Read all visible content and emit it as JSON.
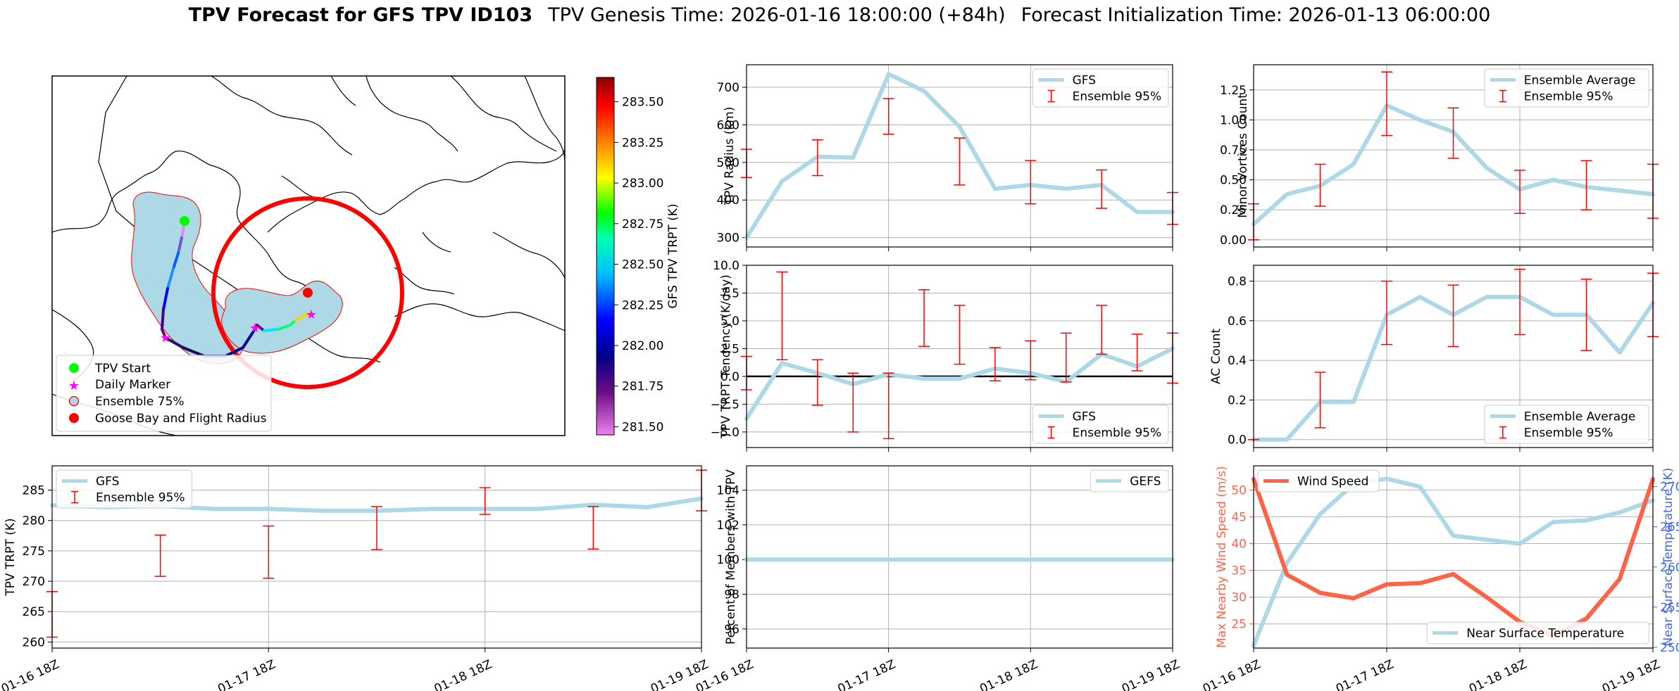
{
  "header": {
    "title_bold": "TPV Forecast for GFS TPV ID103",
    "genesis": "TPV Genesis Time: 2026-01-16 18:00:00 (+84h)",
    "init": "Forecast Initialization Time: 2026-01-13 06:00:00"
  },
  "colors": {
    "gfs_line": "#add8e6",
    "ensemble_err": "#ff0000",
    "wind": "#ff6347",
    "temp_axis": "#4169e1",
    "zero_line": "#000000"
  },
  "map": {
    "colorbar_label": "GFS TPV TRPT (K)",
    "colorbar_ticks": [
      "283.50",
      "283.25",
      "283.00",
      "282.75",
      "282.50",
      "282.25",
      "282.00",
      "281.75",
      "281.50"
    ],
    "legend": [
      "TPV Start",
      "Daily Marker",
      "Ensemble 75%",
      "Goose Bay and Flight Radius"
    ]
  },
  "x_tick_labels": [
    "01-16 18Z",
    "01-17 18Z",
    "01-18 18Z",
    "01-19 18Z"
  ],
  "chart_data": [
    {
      "id": "radius",
      "type": "line",
      "ylabel": "TPV Radius (km)",
      "ylim": [
        275,
        760
      ],
      "yticks": [
        300,
        400,
        500,
        600,
        700
      ],
      "x_hours": [
        0,
        6,
        12,
        18,
        24,
        30,
        36,
        42,
        48,
        54,
        60,
        66,
        72
      ],
      "series": [
        {
          "name": "GFS",
          "values": [
            300,
            450,
            515,
            513,
            735,
            690,
            595,
            430,
            440,
            430,
            440,
            368,
            368
          ]
        }
      ],
      "error_bars": {
        "name": "Ensemble 95%",
        "x_hours": [
          0,
          12,
          24,
          36,
          48,
          60,
          72
        ],
        "low": [
          460,
          465,
          575,
          440,
          390,
          378,
          335
        ],
        "high": [
          535,
          560,
          670,
          565,
          505,
          480,
          420
        ]
      },
      "legend": "top-right"
    },
    {
      "id": "minor",
      "type": "line",
      "ylabel": "Minor Vortices Count",
      "ylim": [
        -0.06,
        1.46
      ],
      "yticks": [
        0.0,
        0.25,
        0.5,
        0.75,
        1.0,
        1.25
      ],
      "yticklabels": [
        "0.00",
        "0.25",
        "0.50",
        "0.75",
        "1.00",
        "1.25"
      ],
      "x_hours": [
        0,
        6,
        12,
        18,
        24,
        30,
        36,
        42,
        48,
        54,
        60,
        66,
        72
      ],
      "series": [
        {
          "name": "Ensemble Average",
          "values": [
            0.13,
            0.38,
            0.45,
            0.63,
            1.12,
            1.0,
            0.9,
            0.6,
            0.42,
            0.5,
            0.44,
            0.41,
            0.38
          ]
        }
      ],
      "error_bars": {
        "name": "Ensemble 95%",
        "x_hours": [
          0,
          12,
          24,
          36,
          48,
          60,
          72
        ],
        "low": [
          0.0,
          0.28,
          0.87,
          0.68,
          0.22,
          0.25,
          0.18
        ],
        "high": [
          0.3,
          0.63,
          1.4,
          1.1,
          0.58,
          0.66,
          0.63
        ]
      },
      "legend": "top-right"
    },
    {
      "id": "tendency",
      "type": "line",
      "ylabel": "TPV TRPT Tendency (K/day)",
      "ylim": [
        -6.4,
        10.0
      ],
      "yticks": [
        -5.0,
        -2.5,
        0.0,
        2.5,
        5.0,
        7.5,
        10.0
      ],
      "yticklabels": [
        "−5.0",
        "−2.5",
        "0.0",
        "2.5",
        "5.0",
        "7.5",
        "10.0"
      ],
      "x_hours": [
        0,
        6,
        12,
        18,
        24,
        30,
        36,
        42,
        48,
        54,
        60,
        66,
        72
      ],
      "series": [
        {
          "name": "GFS",
          "values": [
            -3.8,
            1.2,
            0.3,
            -0.7,
            0.2,
            -0.2,
            -0.2,
            0.7,
            0.3,
            -0.5,
            2.0,
            0.9,
            2.5
          ]
        }
      ],
      "error_bars": {
        "name": "Ensemble 95%",
        "x_hours": [
          0,
          6,
          12,
          18,
          24,
          30,
          36,
          42,
          48,
          54,
          60,
          66,
          72
        ],
        "low": [
          -1.2,
          1.5,
          -2.6,
          -5.0,
          -5.6,
          2.7,
          1.1,
          -0.4,
          -0.3,
          -0.5,
          2.0,
          0.5,
          -0.6
        ],
        "high": [
          1.8,
          9.4,
          1.5,
          0.3,
          0.3,
          7.8,
          6.4,
          2.6,
          3.2,
          3.9,
          6.4,
          3.8,
          3.9
        ]
      },
      "zero_line": true,
      "legend": "bottom-right"
    },
    {
      "id": "ac",
      "type": "line",
      "ylabel": "AC Count",
      "ylim": [
        -0.04,
        0.88
      ],
      "yticks": [
        0.0,
        0.2,
        0.4,
        0.6,
        0.8
      ],
      "yticklabels": [
        "0.0",
        "0.2",
        "0.4",
        "0.6",
        "0.8"
      ],
      "x_hours": [
        0,
        6,
        12,
        18,
        24,
        30,
        36,
        42,
        48,
        54,
        60,
        66,
        72
      ],
      "series": [
        {
          "name": "Ensemble Average",
          "values": [
            0.0,
            0.0,
            0.19,
            0.19,
            0.63,
            0.72,
            0.63,
            0.72,
            0.72,
            0.63,
            0.63,
            0.44,
            0.69
          ]
        }
      ],
      "error_bars": {
        "name": "Ensemble 95%",
        "x_hours": [
          0,
          12,
          24,
          36,
          48,
          60,
          72
        ],
        "low": [
          0.0,
          0.06,
          0.48,
          0.47,
          0.53,
          0.45,
          0.52
        ],
        "high": [
          0.0,
          0.34,
          0.8,
          0.78,
          0.86,
          0.81,
          0.84
        ]
      },
      "legend": "bottom-right"
    },
    {
      "id": "trpt",
      "type": "line",
      "ylabel": "TPV TRPT (K)",
      "ylim": [
        259,
        289
      ],
      "yticks": [
        260,
        265,
        270,
        275,
        280,
        285
      ],
      "x_hours": [
        0,
        6,
        12,
        18,
        24,
        30,
        36,
        42,
        48,
        54,
        60,
        66,
        72
      ],
      "series": [
        {
          "name": "GFS",
          "values": [
            282.5,
            282.2,
            282.4,
            281.9,
            281.9,
            281.6,
            281.6,
            281.9,
            281.9,
            281.9,
            282.6,
            282.2,
            283.6
          ]
        }
      ],
      "error_bars": {
        "name": "Ensemble 95%",
        "x_hours": [
          0,
          12,
          24,
          36,
          48,
          60,
          72
        ],
        "low": [
          260.8,
          270.8,
          270.5,
          275.2,
          281.0,
          275.3,
          281.6
        ],
        "high": [
          268.3,
          277.6,
          279.1,
          282.3,
          285.4,
          282.3,
          288.3
        ]
      },
      "legend": "top-left"
    },
    {
      "id": "percent",
      "type": "line",
      "ylabel": "Percent of Members with TPV",
      "ylim": [
        94.9,
        105.4
      ],
      "yticks": [
        96,
        98,
        100,
        102,
        104
      ],
      "x_hours": [
        0,
        72
      ],
      "series": [
        {
          "name": "GEFS",
          "values": [
            100,
            100
          ]
        }
      ],
      "legend": "top-right"
    },
    {
      "id": "wind",
      "type": "line",
      "ylabel": "Max Nearby Wind Speed (m/s)",
      "ylim": [
        20.5,
        54.5
      ],
      "yticks": [
        25,
        30,
        35,
        40,
        45,
        50
      ],
      "x_hours": [
        0,
        6,
        12,
        18,
        24,
        30,
        36,
        42,
        48,
        54,
        60,
        66,
        72
      ],
      "series": [
        {
          "name": "Wind Speed",
          "values": [
            52.0,
            34.2,
            30.8,
            29.8,
            32.4,
            32.6,
            34.3,
            30.0,
            25.4,
            22.8,
            26.0,
            33.4,
            52.0
          ]
        }
      ],
      "legend": "top-left"
    },
    {
      "id": "temp",
      "type": "line",
      "ylabel": "Near Surface Temperature (K)",
      "ylim": [
        249.9,
        272.6
      ],
      "yticks": [
        250,
        255,
        260,
        265,
        270
      ],
      "x_hours": [
        0,
        6,
        12,
        18,
        24,
        30,
        36,
        42,
        48,
        54,
        60,
        66,
        72
      ],
      "series": [
        {
          "name": "Near Surface Temperature",
          "values": [
            250.2,
            260.5,
            266.6,
            270.3,
            271.0,
            270.0,
            263.9,
            263.4,
            262.9,
            265.6,
            265.8,
            266.8,
            268.3
          ]
        }
      ],
      "legend": "bottom-right"
    }
  ]
}
